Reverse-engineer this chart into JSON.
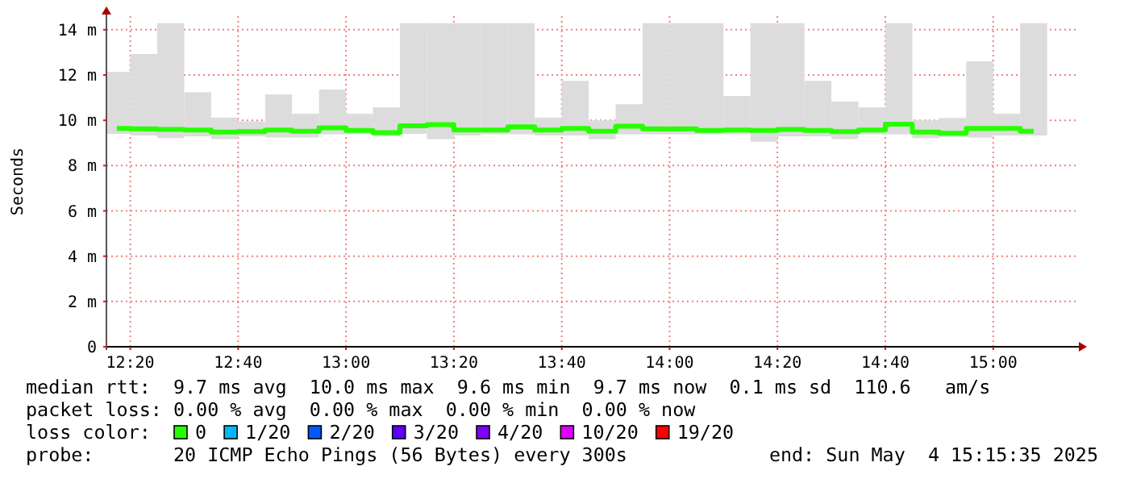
{
  "chart_data": {
    "type": "bar",
    "ylabel": "Seconds",
    "x": [
      12.2917,
      12.375,
      12.4583,
      12.5417,
      12.625,
      12.7083,
      12.7917,
      12.875,
      12.9583,
      13.0417,
      13.125,
      13.2083,
      13.2917,
      13.375,
      13.4583,
      13.5417,
      13.625,
      13.7083,
      13.7917,
      13.875,
      13.9583,
      14.0417,
      14.125,
      14.2083,
      14.2917,
      14.375,
      14.4583,
      14.5417,
      14.625,
      14.7083,
      14.7917,
      14.875,
      14.9583,
      15.0417,
      15.125
    ],
    "series": [
      {
        "color": "#dcdcdc",
        "base": [
          9.4,
          9.33,
          9.21,
          9.29,
          9.17,
          9.29,
          9.24,
          9.24,
          9.38,
          9.4,
          9.29,
          9.4,
          9.17,
          9.33,
          9.38,
          9.38,
          9.33,
          9.33,
          9.17,
          9.38,
          9.38,
          9.38,
          9.38,
          9.38,
          9.05,
          9.29,
          9.29,
          9.17,
          9.38,
          9.38,
          9.21,
          9.26,
          9.24,
          9.33,
          9.33
        ],
        "values": [
          2.74,
          3.6,
          5.08,
          1.95,
          0.95,
          0.66,
          1.9,
          1.05,
          1.98,
          0.89,
          1.28,
          4.89,
          5.12,
          4.96,
          4.91,
          4.91,
          0.79,
          2.41,
          0.83,
          1.33,
          4.91,
          4.91,
          4.91,
          1.69,
          5.24,
          5.0,
          2.45,
          1.66,
          1.19,
          4.91,
          0.79,
          0.84,
          3.36,
          0.96,
          4.96
        ]
      },
      {
        "type": "step",
        "name": "0",
        "color": "#26ff00",
        "values": [
          9.64,
          9.62,
          9.6,
          9.57,
          9.48,
          9.5,
          9.57,
          9.52,
          9.67,
          9.55,
          9.45,
          9.76,
          9.81,
          9.57,
          9.57,
          9.71,
          9.57,
          9.64,
          9.52,
          9.74,
          9.62,
          9.62,
          9.55,
          9.57,
          9.55,
          9.6,
          9.55,
          9.5,
          9.57,
          9.83,
          9.48,
          9.43,
          9.64,
          9.64,
          9.52
        ]
      },
      {
        "type": "step",
        "name": "1/20",
        "color": "#00b8ff",
        "values": [
          null,
          null,
          null,
          null,
          null,
          null,
          null,
          null,
          null,
          null,
          null,
          null,
          null,
          null,
          null,
          null,
          null,
          null,
          null,
          null,
          null,
          null,
          null,
          null,
          null,
          null,
          null,
          null,
          null,
          null,
          null,
          null,
          null,
          null,
          null
        ]
      },
      {
        "type": "step",
        "name": "2/20",
        "color": "#0059ff",
        "values": [
          null,
          null,
          null,
          null,
          null,
          null,
          null,
          null,
          null,
          null,
          null,
          null,
          null,
          null,
          null,
          null,
          null,
          null,
          null,
          null,
          null,
          null,
          null,
          null,
          null,
          null,
          null,
          null,
          null,
          null,
          null,
          null,
          null,
          null,
          null
        ]
      },
      {
        "type": "step",
        "name": "3/20",
        "color": "#5e00ff",
        "values": [
          null,
          null,
          null,
          null,
          null,
          null,
          null,
          null,
          null,
          null,
          null,
          null,
          null,
          null,
          null,
          null,
          null,
          null,
          null,
          null,
          null,
          null,
          null,
          null,
          null,
          null,
          null,
          null,
          null,
          null,
          null,
          null,
          null,
          null,
          null
        ]
      },
      {
        "type": "step",
        "name": "4/20",
        "color": "#7e00ff",
        "values": [
          null,
          null,
          null,
          null,
          null,
          null,
          null,
          null,
          null,
          null,
          null,
          null,
          null,
          null,
          null,
          null,
          null,
          null,
          null,
          null,
          null,
          null,
          null,
          null,
          null,
          null,
          null,
          null,
          null,
          null,
          null,
          null,
          null,
          null,
          null
        ]
      },
      {
        "type": "step",
        "name": "10/20",
        "color": "#dd00ff",
        "values": [
          null,
          null,
          null,
          null,
          null,
          null,
          null,
          null,
          null,
          null,
          null,
          null,
          null,
          null,
          null,
          null,
          null,
          null,
          null,
          null,
          null,
          null,
          null,
          null,
          null,
          null,
          null,
          null,
          null,
          null,
          null,
          null,
          null,
          null,
          null
        ]
      },
      {
        "type": "step",
        "name": "19/20",
        "color": "#ff0000",
        "values": [
          null,
          null,
          null,
          null,
          null,
          null,
          null,
          null,
          null,
          null,
          null,
          null,
          null,
          null,
          null,
          null,
          null,
          null,
          null,
          null,
          null,
          null,
          null,
          null,
          null,
          null,
          null,
          null,
          null,
          null,
          null,
          null,
          null,
          null,
          null
        ]
      }
    ],
    "xlim": [
      12.2597,
      15.2597
    ],
    "xticks": [
      {
        "value": 12.3333,
        "label": "12:20"
      },
      {
        "value": 12.6667,
        "label": "12:40"
      },
      {
        "value": 13,
        "label": "13:00"
      },
      {
        "value": 13.3333,
        "label": "13:20"
      },
      {
        "value": 13.6667,
        "label": "13:40"
      },
      {
        "value": 14,
        "label": "14:00"
      },
      {
        "value": 14.3333,
        "label": "14:20"
      },
      {
        "value": 14.6667,
        "label": "14:40"
      },
      {
        "value": 15,
        "label": "15:00"
      }
    ],
    "ylim": [
      0,
      14.6
    ],
    "yticks": [
      0,
      {
        "value": 2,
        "label": "2 m"
      },
      {
        "value": 4,
        "label": "4 m"
      },
      {
        "value": 6,
        "label": "6 m"
      },
      {
        "value": 8,
        "label": "8 m"
      },
      {
        "value": 10,
        "label": "10 m"
      },
      {
        "value": 12,
        "label": "12 m"
      },
      {
        "value": 14,
        "label": "14 m"
      }
    ],
    "grid": true,
    "legend": "bottom",
    "legend_title": "loss color:",
    "annotations": [
      "median rtt:  9.7 ms avg  10.0 ms max  9.6 ms min  9.7 ms now  0.1 ms sd  110.6   am/s",
      "packet loss: 0.00 % avg  0.00 % max  0.00 % min  0.00 % now",
      "probe:       20 ICMP Echo Pings (56 Bytes) every 300s",
      "end: Sun May  4 15:15:35 2025"
    ]
  }
}
